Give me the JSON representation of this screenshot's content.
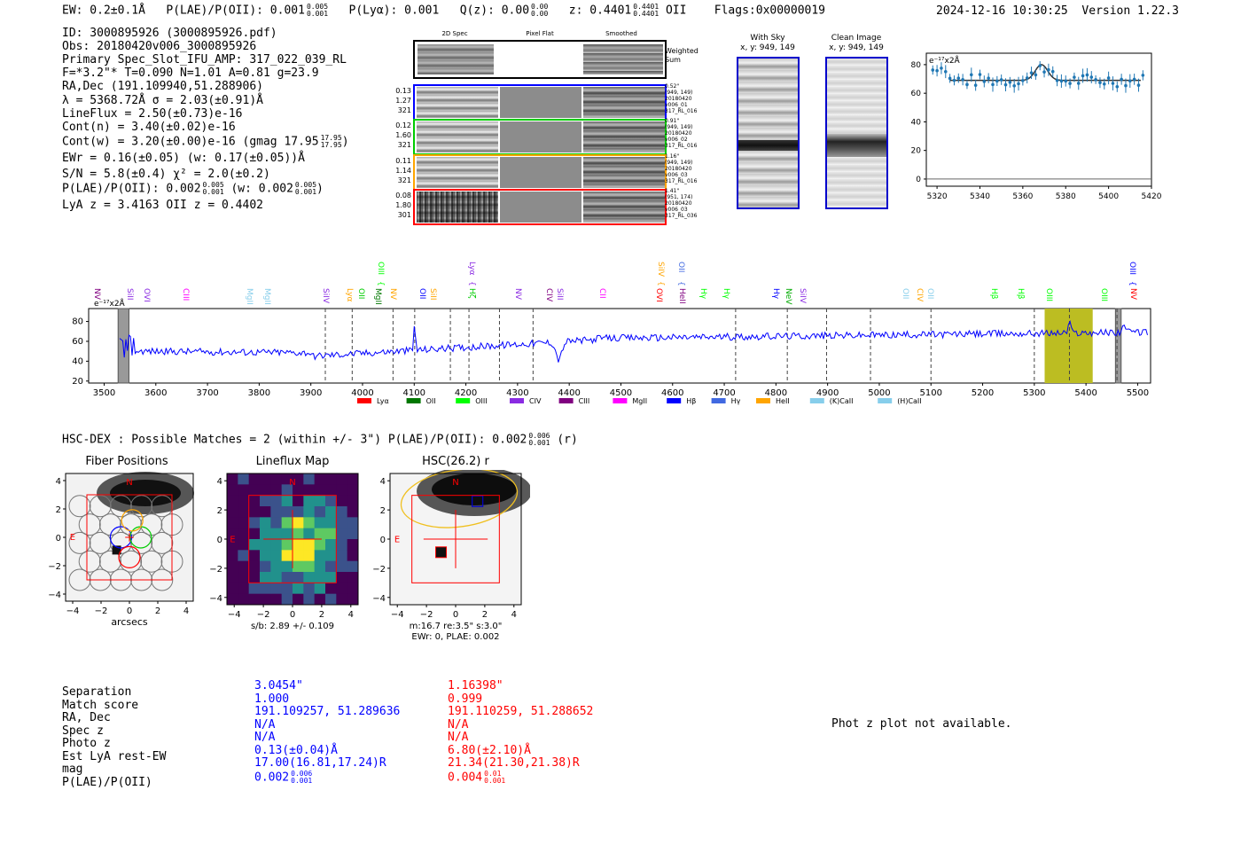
{
  "header": {
    "ew": "EW: 0.2±0.1Å",
    "plae": "P(LAE)/P(OII): 0.001",
    "plae_hi": "0.005",
    "plae_lo": "0.001",
    "plya": "P(Lyα): 0.001",
    "qz": "Q(z): 0.00",
    "qz_hi": "0.00",
    "qz_lo": "0.00",
    "z": "z: 0.4401",
    "z_hi": "0.4401",
    "z_lo": "0.4401",
    "z_line": "OII",
    "flags": "Flags:0x00000019",
    "timestamp": "2024-12-16 10:30:25",
    "version": "Version 1.22.3"
  },
  "info": {
    "id": "ID: 3000895926 (3000895926.pdf)",
    "obs": "Obs: 20180420v006_3000895926",
    "primary": "Primary Spec_Slot_IFU_AMP: 317_022_039_RL",
    "fit": "F=*3.2\"*  T=0.090  N=1.01  A=0.81  g=23.9",
    "radec": "RA,Dec (191.109940,51.288906)",
    "lambda": "λ = 5368.72Å  σ = 2.03(±0.91)Å",
    "lineflux": "LineFlux = 2.50(±0.73)e-16",
    "contn": "Cont(n) = 3.40(±0.02)e-16",
    "contw": "Cont(w) = 3.20(±0.00)e-16 (gmag 17.95",
    "contw_hi": "17.95",
    "contw_lo": "17.95",
    "ewr": "EWr = 0.16(±0.05) (w: 0.17(±0.05))Å",
    "sn": "S/N = 5.8(±0.4)  χ² = 2.0(±0.2)",
    "plae2": "P(LAE)/P(OII): 0.002",
    "plae2_hi": "0.005",
    "plae2_lo": "0.001",
    "plae2_w": "(w: 0.002",
    "plae2_w_hi": "0.005",
    "plae2_w_lo": "0.001",
    "lyaz": "LyA z = 3.4163  OII z = 0.4402"
  },
  "cutouts": {
    "col_2d": "2D Spec",
    "col_flat": "Pixel Flat",
    "col_smooth": "Smoothed",
    "weighted": "Weighted Sum",
    "rows": [
      {
        "left": [
          "0.13",
          "1.27",
          "321"
        ],
        "right": [
          "0.52\"",
          "(949, 149)",
          "20180420",
          "v006_01",
          "317_RL_016"
        ],
        "color": "#0000ff"
      },
      {
        "left": [
          "0.12",
          "1.60",
          "321"
        ],
        "right": [
          "0.91\"",
          "(949, 149)",
          "20180420",
          "v006_02",
          "317_RL_016"
        ],
        "color": "#00cc00"
      },
      {
        "left": [
          "0.11",
          "1.14",
          "321"
        ],
        "right": [
          "1.16\"",
          "(949, 149)",
          "20180420",
          "v006_03",
          "317_RL_016"
        ],
        "color": "#ffa500"
      },
      {
        "left": [
          "0.08",
          "1.80",
          "301"
        ],
        "right": [
          "1.41\"",
          "(951, 174)",
          "20180420",
          "v006_03",
          "317_RL_036"
        ],
        "color": "#ff0000"
      }
    ]
  },
  "sky_panels": {
    "with_sky": "With Sky",
    "with_sky_xy": "x, y: 949, 149",
    "clean": "Clean Image",
    "clean_xy": "x, y: 949, 149"
  },
  "zoom_chart": {
    "units": "e⁻¹⁷x2Å",
    "yticks": [
      "0",
      "20",
      "40",
      "60",
      "80"
    ],
    "xticks": [
      "5320",
      "5340",
      "5360",
      "5380",
      "5400",
      "5420"
    ]
  },
  "full_spec": {
    "units": "e⁻¹⁷x2Å",
    "yticks": [
      "20",
      "40",
      "60",
      "80"
    ],
    "xticks": [
      "3500",
      "3600",
      "3700",
      "3800",
      "3900",
      "4000",
      "4100",
      "4200",
      "4300",
      "4400",
      "4500",
      "4600",
      "4700",
      "4800",
      "4900",
      "5000",
      "5100",
      "5200",
      "5300",
      "5400",
      "5500"
    ],
    "legend": [
      {
        "label": "Lyα",
        "color": "#ff0000"
      },
      {
        "label": "OII",
        "color": "#007700"
      },
      {
        "label": "OIII",
        "color": "#00ff00"
      },
      {
        "label": "CIV",
        "color": "#8a2be2"
      },
      {
        "label": "CIII",
        "color": "#800080"
      },
      {
        "label": "MgII",
        "color": "#ff00ff"
      },
      {
        "label": "Hβ",
        "color": "#0000ff"
      },
      {
        "label": "Hγ",
        "color": "#4169e1"
      },
      {
        "label": "HeII",
        "color": "#ffa500"
      },
      {
        "label": "(K)CaII",
        "color": "#87ceeb"
      },
      {
        "label": "(H)CaII",
        "color": "#87ceeb"
      }
    ],
    "line_labels": [
      {
        "t": "NV",
        "c": "#800080",
        "x": 104,
        "row": 2
      },
      {
        "t": "SiII",
        "c": "#8a2be2",
        "x": 141,
        "row": 2
      },
      {
        "t": "OVI",
        "c": "#8a2be2",
        "x": 160,
        "row": 2
      },
      {
        "t": "CIII",
        "c": "#ff00ff",
        "x": 204,
        "row": 2
      },
      {
        "t": "MgII",
        "c": "#87ceeb",
        "x": 276,
        "row": 2
      },
      {
        "t": "MgII",
        "c": "#87ceeb",
        "x": 296,
        "row": 2
      },
      {
        "t": "SiIV",
        "c": "#8a2be2",
        "x": 362,
        "row": 2
      },
      {
        "t": "Lyα",
        "c": "#ffa500",
        "x": 389,
        "row": 2
      },
      {
        "t": "OII",
        "c": "#00cc00",
        "x": 402,
        "row": 2
      },
      {
        "t": "MgII",
        "c": "#007700",
        "x": 421,
        "row": 2
      },
      {
        "t": "OIII",
        "c": "#00ff00",
        "x": 424,
        "row": 1
      },
      {
        "t": "NV",
        "c": "#ffa500",
        "x": 438,
        "row": 2
      },
      {
        "t": "OII",
        "c": "#0000ff",
        "x": 471,
        "row": 2
      },
      {
        "t": "SiII",
        "c": "#ffa500",
        "x": 483,
        "row": 2
      },
      {
        "t": "Lyα",
        "c": "#8a2be2",
        "x": 527,
        "row": 1
      },
      {
        "t": "Hζ",
        "c": "#00cc00",
        "x": 527,
        "row": 2
      },
      {
        "t": "NV",
        "c": "#8a2be2",
        "x": 579,
        "row": 2
      },
      {
        "t": "CIV",
        "c": "#800080",
        "x": 614,
        "row": 2
      },
      {
        "t": "SiII",
        "c": "#8a2be2",
        "x": 626,
        "row": 2
      },
      {
        "t": "CII",
        "c": "#ff00ff",
        "x": 674,
        "row": 2
      },
      {
        "t": "SiIV",
        "c": "#ffa500",
        "x": 740,
        "row": 1
      },
      {
        "t": "OVI",
        "c": "#ff0000",
        "x": 738,
        "row": 2
      },
      {
        "t": "OII",
        "c": "#4169e1",
        "x": 763,
        "row": 1
      },
      {
        "t": "HeII",
        "c": "#800080",
        "x": 764,
        "row": 2
      },
      {
        "t": "Hγ",
        "c": "#00ff00",
        "x": 788,
        "row": 2
      },
      {
        "t": "Hγ",
        "c": "#00ff00",
        "x": 814,
        "row": 2
      },
      {
        "t": "Hγ",
        "c": "#0000ff",
        "x": 870,
        "row": 2
      },
      {
        "t": "NeV",
        "c": "#00aa00",
        "x": 884,
        "row": 2
      },
      {
        "t": "SiIV",
        "c": "#8a2be2",
        "x": 900,
        "row": 2
      },
      {
        "t": "OII",
        "c": "#87ceeb",
        "x": 1016,
        "row": 2
      },
      {
        "t": "CIV",
        "c": "#ffa500",
        "x": 1032,
        "row": 2
      },
      {
        "t": "OII",
        "c": "#87ceeb",
        "x": 1044,
        "row": 2
      },
      {
        "t": "Hβ",
        "c": "#00ff00",
        "x": 1116,
        "row": 2
      },
      {
        "t": "Hβ",
        "c": "#00ff00",
        "x": 1146,
        "row": 2
      },
      {
        "t": "OIII",
        "c": "#00ff00",
        "x": 1178,
        "row": 2
      },
      {
        "t": "OIII",
        "c": "#00ff00",
        "x": 1240,
        "row": 2
      },
      {
        "t": "NV",
        "c": "#ff0000",
        "x": 1273,
        "row": 2
      },
      {
        "t": "OIII",
        "c": "#0000ff",
        "x": 1272,
        "row": 1
      }
    ]
  },
  "hsc": {
    "title": "HSC-DEX : Possible Matches = 2 (within +/- 3\")  P(LAE)/P(OII): 0.002",
    "plae_hi": "0.006",
    "plae_lo": "0.001",
    "band": "(r)",
    "panels": {
      "fiber_title": "Fiber Positions",
      "fiber_xlabel": "arcsecs",
      "lineflux_title": "Lineflux Map",
      "lineflux_xlabel": "s/b: 2.89 +/- 0.109",
      "hsc_title": "HSC(26.2) r",
      "hsc_xlabel1": "m:16.7  re:3.5\"  s:3.0\"",
      "hsc_xlabel2": "EWr: 0, PLAE: 0.002"
    },
    "axis_ticks": [
      "4",
      "2",
      "0",
      "−2",
      "−4"
    ],
    "x_ticks": [
      "−4",
      "−2",
      "0",
      "2",
      "4"
    ],
    "compass_n": "N",
    "compass_e": "E"
  },
  "matches": {
    "labels": [
      "Separation",
      "Match score",
      "RA, Dec",
      "Spec z",
      "Photo z",
      "Est LyA rest-EW",
      "mag",
      "P(LAE)/P(OII)"
    ],
    "match1": [
      "3.0454\"",
      "1.000",
      "191.109257, 51.289636",
      "N/A",
      "N/A",
      "0.13(±0.04)Å",
      "17.00(16.81,17.24)R",
      "0.002"
    ],
    "match1_plae_hi": "0.006",
    "match1_plae_lo": "0.001",
    "match2": [
      "1.16398\"",
      "0.999",
      "191.110259, 51.288652",
      "N/A",
      "N/A",
      "6.80(±2.10)Å",
      "21.34(21.30,21.38)R",
      "0.004"
    ],
    "match2_plae_hi": "0.01",
    "match2_plae_lo": "0.001"
  },
  "photz": "Phot z plot not available."
}
